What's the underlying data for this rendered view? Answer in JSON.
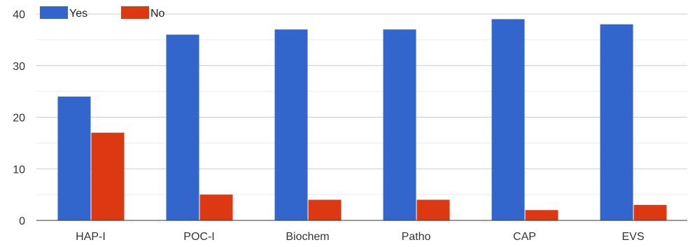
{
  "chart_data": {
    "type": "bar",
    "categories": [
      "HAP-I",
      "POC-I",
      "Biochem",
      "Patho",
      "CAP",
      "EVS"
    ],
    "series": [
      {
        "name": "Yes",
        "color": "#3366cc",
        "values": [
          24,
          36,
          37,
          37,
          39,
          38
        ]
      },
      {
        "name": "No",
        "color": "#dc3912",
        "values": [
          17,
          5,
          4,
          4,
          2,
          3
        ]
      }
    ],
    "ylim": [
      0,
      40
    ],
    "yticks": [
      0,
      10,
      20,
      30,
      40
    ],
    "grid": true,
    "legend": "top-left"
  }
}
